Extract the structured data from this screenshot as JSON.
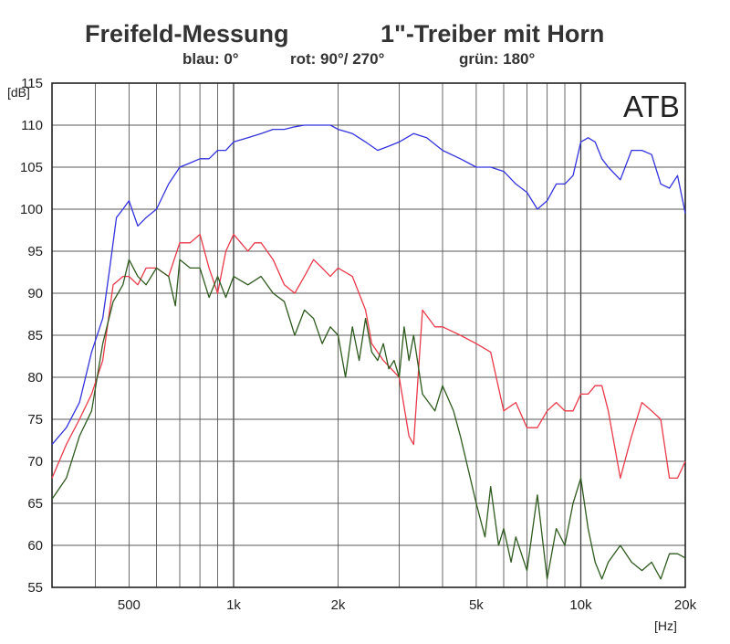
{
  "chart_data": {
    "type": "line",
    "title": "Freifeld-Messung",
    "title_right": "1\"-Treiber mit Horn",
    "subtitle_parts": [
      "blau: 0°",
      "rot: 90°/ 270°",
      "grün: 180°"
    ],
    "watermark": "ATB",
    "xlabel": "[Hz]",
    "ylabel": "[dB]",
    "x_scale": "log",
    "xlim": [
      300,
      20000
    ],
    "ylim": [
      55,
      115
    ],
    "x_ticks": [
      {
        "value": 500,
        "label": "500"
      },
      {
        "value": 1000,
        "label": "1k"
      },
      {
        "value": 2000,
        "label": "2k"
      },
      {
        "value": 5000,
        "label": "5k"
      },
      {
        "value": 10000,
        "label": "10k"
      },
      {
        "value": 20000,
        "label": "20k"
      }
    ],
    "x_gridlines": [
      300,
      400,
      500,
      600,
      700,
      800,
      900,
      1000,
      2000,
      3000,
      4000,
      5000,
      6000,
      7000,
      8000,
      9000,
      10000,
      20000
    ],
    "y_ticks": [
      {
        "value": 55,
        "label": "55"
      },
      {
        "value": 60,
        "label": "60"
      },
      {
        "value": 65,
        "label": "65"
      },
      {
        "value": 70,
        "label": "70"
      },
      {
        "value": 75,
        "label": "75"
      },
      {
        "value": 80,
        "label": "80"
      },
      {
        "value": 85,
        "label": "85"
      },
      {
        "value": 90,
        "label": "90"
      },
      {
        "value": 95,
        "label": "95"
      },
      {
        "value": 100,
        "label": "100"
      },
      {
        "value": 105,
        "label": "105"
      },
      {
        "value": 110,
        "label": "110"
      },
      {
        "value": 115,
        "label": "115"
      }
    ],
    "grid": true,
    "series": [
      {
        "color": "#3333dd",
        "x": [
          300,
          330,
          360,
          390,
          420,
          440,
          460,
          480,
          500,
          530,
          560,
          600,
          650,
          700,
          750,
          800,
          850,
          900,
          950,
          1000,
          1100,
          1200,
          1300,
          1400,
          1500,
          1600,
          1700,
          1800,
          1900,
          2000,
          2200,
          2400,
          2600,
          2800,
          3000,
          3300,
          3600,
          4000,
          4500,
          5000,
          5500,
          6000,
          6500,
          7000,
          7500,
          8000,
          8500,
          9000,
          9500,
          10000,
          10500,
          11000,
          11500,
          12000,
          13000,
          14000,
          15000,
          16000,
          17000,
          18000,
          19000,
          20000
        ],
        "y": [
          72,
          74,
          77,
          83,
          87,
          93,
          99,
          100,
          101,
          98,
          99,
          100,
          103,
          105,
          105.5,
          106,
          106,
          107,
          107,
          108,
          108.5,
          109,
          109.5,
          109.5,
          109.8,
          110,
          110,
          110,
          110,
          109.5,
          109,
          108,
          107,
          107.5,
          108,
          109,
          108.5,
          107,
          106,
          105,
          105,
          104.5,
          103,
          102,
          100,
          101,
          103,
          103,
          104,
          108,
          108.5,
          108,
          106,
          105,
          103.5,
          107,
          107,
          106.5,
          103,
          102.5,
          104,
          99.5
        ]
      },
      {
        "color": "#e83a4a",
        "x": [
          300,
          330,
          360,
          390,
          420,
          450,
          480,
          500,
          530,
          560,
          600,
          650,
          700,
          750,
          800,
          850,
          900,
          950,
          1000,
          1050,
          1100,
          1150,
          1200,
          1300,
          1400,
          1500,
          1600,
          1700,
          1800,
          1900,
          2000,
          2200,
          2400,
          2500,
          2700,
          3000,
          3200,
          3300,
          3500,
          3800,
          4000,
          4500,
          5000,
          5500,
          6000,
          6500,
          7000,
          7500,
          8000,
          8500,
          9000,
          9500,
          10000,
          10500,
          11000,
          11500,
          12000,
          13000,
          14000,
          15000,
          16000,
          17000,
          18000,
          19000,
          20000
        ],
        "y": [
          68,
          72,
          75,
          78,
          82,
          91,
          92,
          92,
          91,
          93,
          93,
          92,
          96,
          96,
          97,
          93,
          90,
          95,
          97,
          96,
          95,
          96,
          96,
          94,
          91,
          90,
          92,
          94,
          93,
          92,
          93,
          92,
          88,
          84,
          82,
          80,
          73,
          72,
          88,
          86,
          86,
          85,
          84,
          83,
          76,
          77,
          74,
          74,
          76,
          77,
          76,
          76,
          78,
          78,
          79,
          79,
          76,
          68,
          73,
          77,
          76,
          75,
          68,
          68,
          70
        ]
      },
      {
        "color": "#2e5a1e",
        "x": [
          300,
          330,
          360,
          390,
          420,
          450,
          480,
          500,
          530,
          560,
          600,
          650,
          680,
          700,
          750,
          800,
          850,
          900,
          950,
          1000,
          1100,
          1200,
          1300,
          1400,
          1500,
          1600,
          1700,
          1800,
          1900,
          2000,
          2100,
          2200,
          2300,
          2400,
          2500,
          2600,
          2700,
          2800,
          2900,
          3000,
          3100,
          3200,
          3300,
          3500,
          3800,
          4000,
          4300,
          4500,
          5000,
          5300,
          5500,
          5800,
          6000,
          6300,
          6500,
          7000,
          7500,
          8000,
          8500,
          9000,
          9500,
          10000,
          10500,
          11000,
          11500,
          12000,
          13000,
          14000,
          15000,
          16000,
          17000,
          18000,
          19000,
          20000
        ],
        "y": [
          65.5,
          68,
          73,
          76,
          84,
          89,
          91,
          94,
          92,
          91,
          93,
          92,
          88.5,
          94,
          93,
          93,
          89.5,
          92,
          89.5,
          92,
          91,
          92,
          90,
          89,
          85,
          88,
          87,
          84,
          86,
          85,
          80,
          86,
          82,
          87,
          83,
          82,
          84,
          81,
          82,
          80,
          86,
          82,
          85,
          78,
          76,
          79,
          76,
          73,
          65,
          61,
          67,
          60,
          62,
          58,
          61,
          57,
          66,
          56,
          62,
          60,
          65,
          68,
          62,
          58,
          56,
          58,
          60,
          58,
          57,
          58,
          56,
          59,
          59,
          58.5
        ]
      }
    ]
  }
}
